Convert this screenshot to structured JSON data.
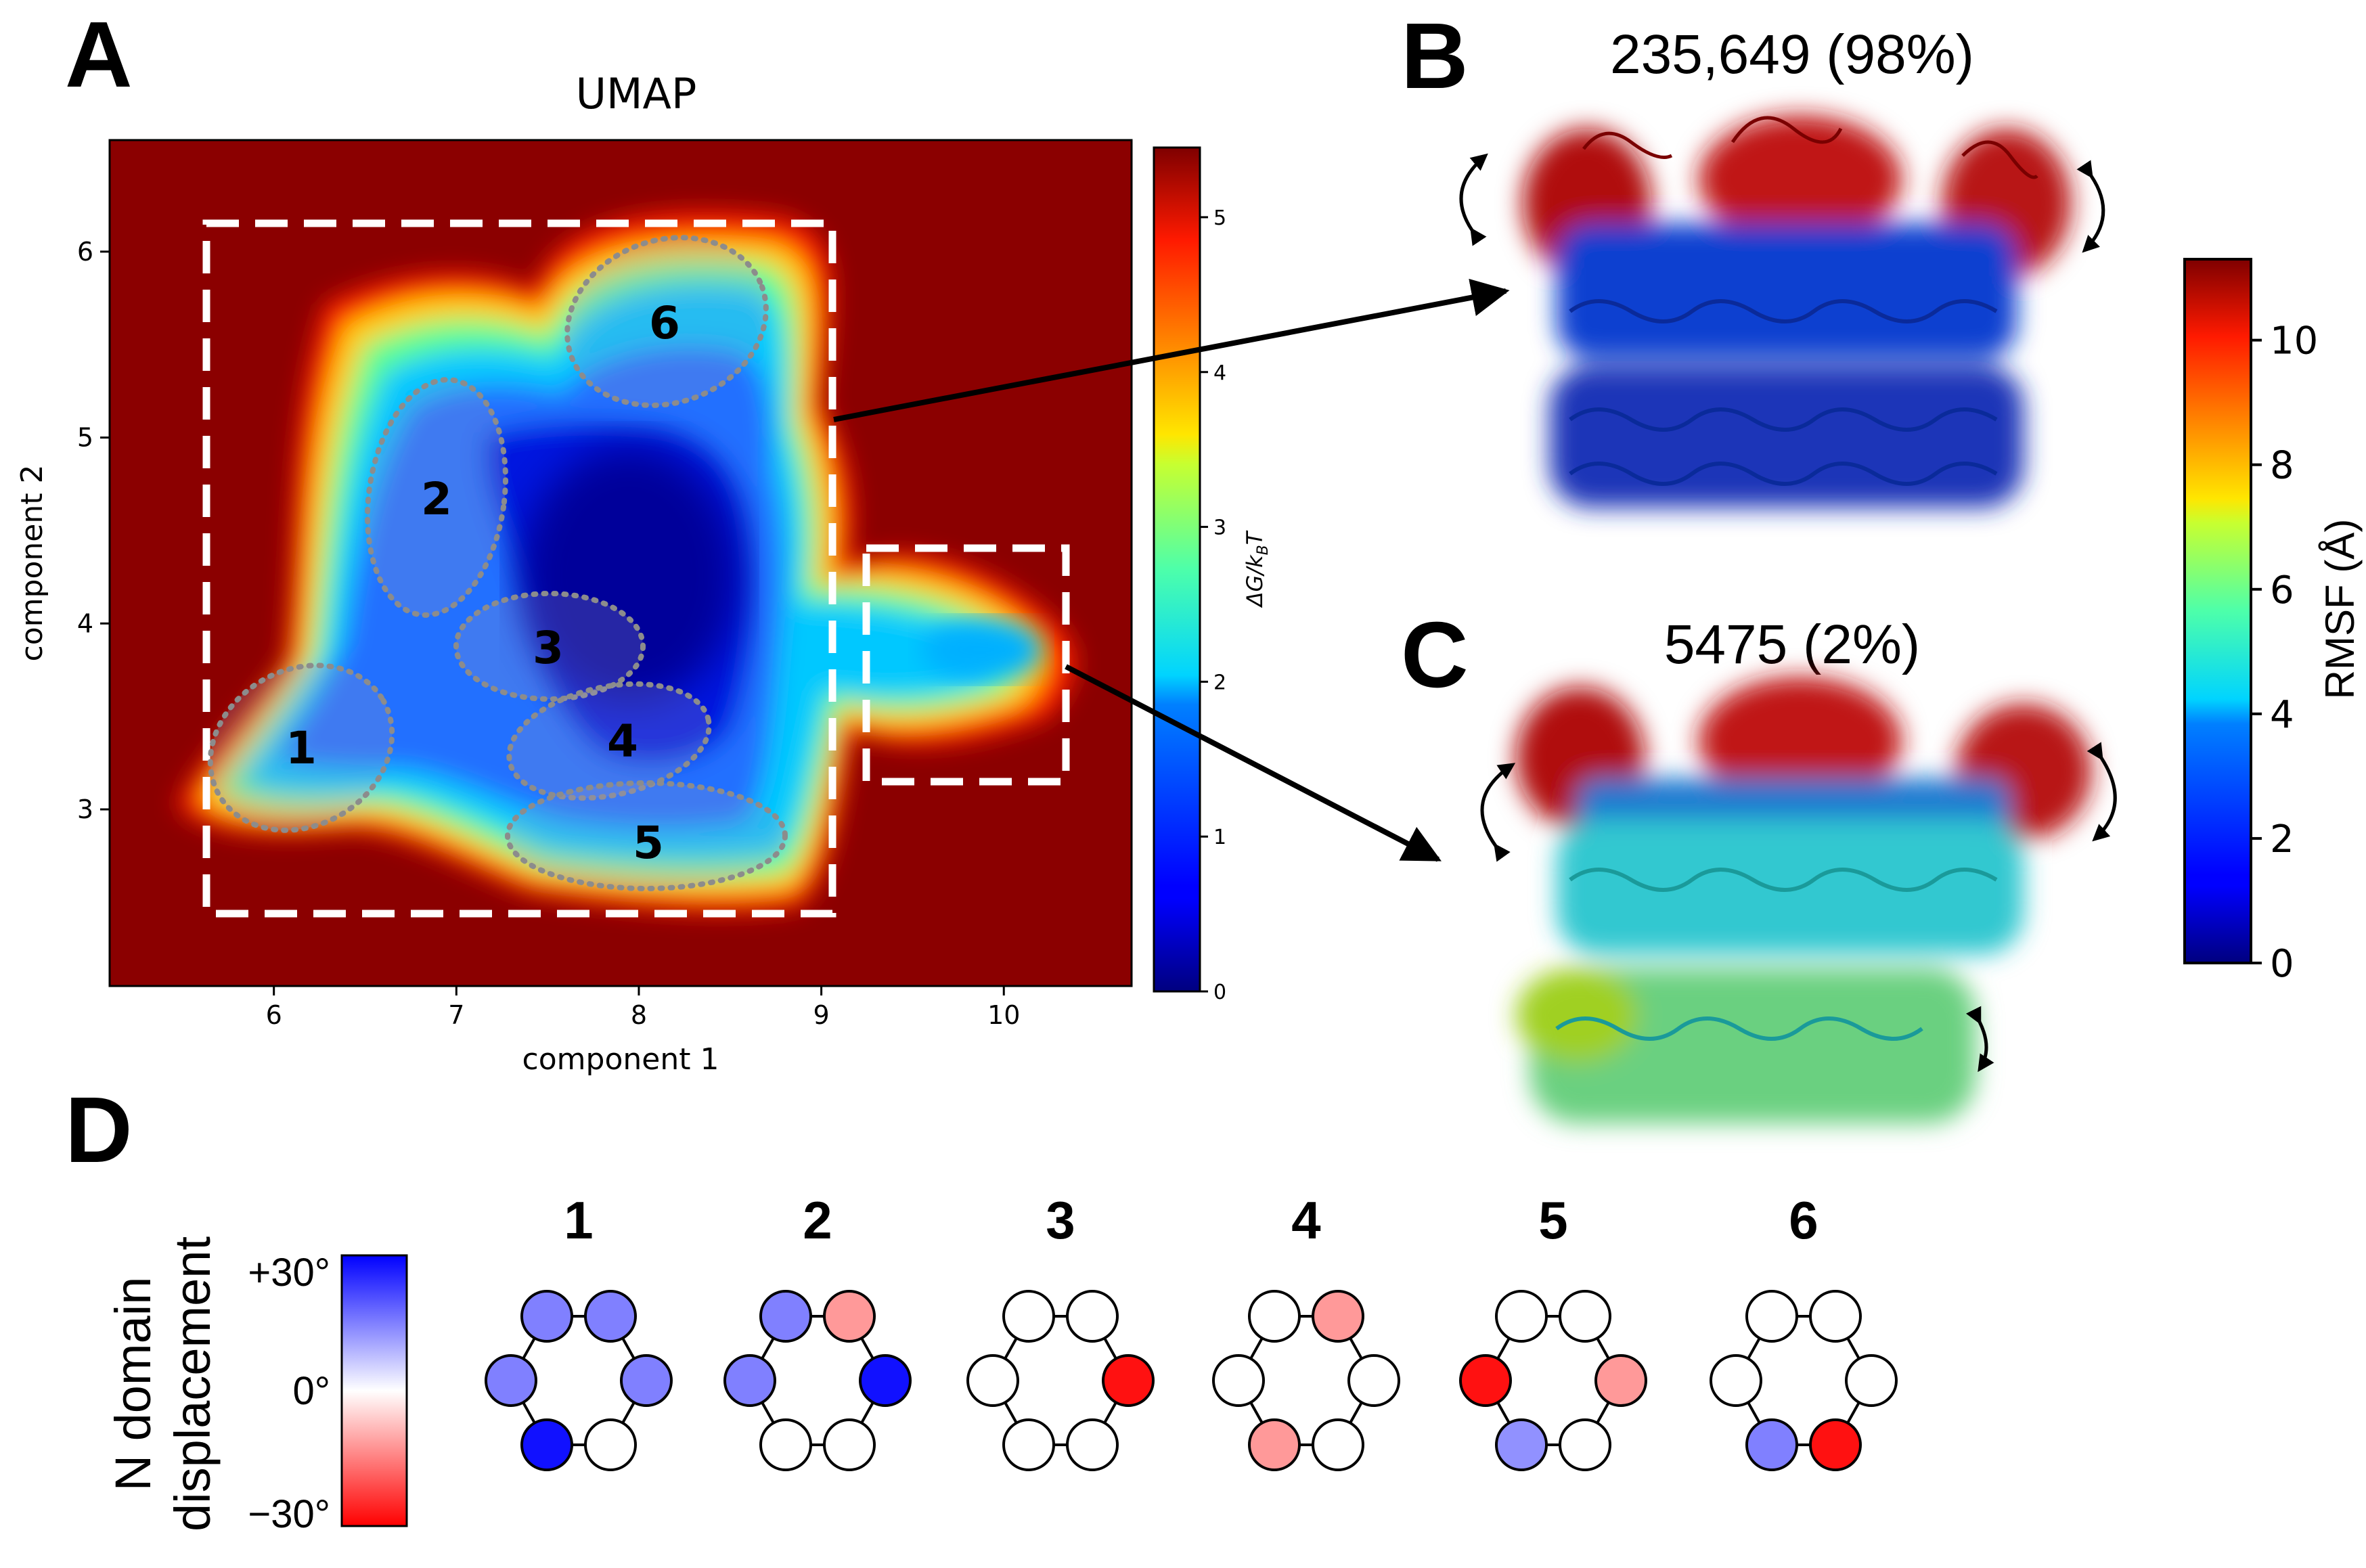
{
  "panels": {
    "a": "A",
    "b": "B",
    "c": "C",
    "d": "D"
  },
  "chart_data": [
    {
      "type": "heatmap",
      "title": "UMAP",
      "xlabel": "component 1",
      "ylabel": "component 2",
      "xlim": [
        5.1,
        10.7
      ],
      "ylim": [
        2.05,
        6.6
      ],
      "x_ticks": [
        "6",
        "7",
        "8",
        "9",
        "10"
      ],
      "y_ticks": [
        "3",
        "4",
        "5",
        "6"
      ],
      "colorbar": {
        "label": "ΔG/k",
        "label_sub": "B",
        "label_tail": "T",
        "range": [
          0,
          5.45
        ],
        "ticks": [
          "0",
          "1",
          "2",
          "3",
          "4",
          "5"
        ],
        "colormap": "jet"
      },
      "background_color": "#8b0000",
      "clusters": [
        {
          "label": "1",
          "center": [
            6.2,
            3.3
          ]
        },
        {
          "label": "2",
          "center": [
            6.95,
            4.6
          ]
        },
        {
          "label": "3",
          "center": [
            7.65,
            3.8
          ]
        },
        {
          "label": "4",
          "center": [
            8.0,
            3.35
          ]
        },
        {
          "label": "5",
          "center": [
            8.05,
            2.75
          ]
        },
        {
          "label": "6",
          "center": [
            8.2,
            5.6
          ]
        }
      ],
      "selection_boxes": [
        {
          "x": [
            5.7,
            9.05
          ],
          "y": [
            2.4,
            6.15
          ],
          "links_to": "B"
        },
        {
          "x": [
            9.25,
            10.35
          ],
          "y": [
            3.1,
            4.35
          ],
          "links_to": "C"
        }
      ]
    },
    {
      "type": "table",
      "title": "N domain displacement",
      "colorbar": {
        "ticks": [
          "+30°",
          "0°",
          "−30°"
        ],
        "range": [
          -30,
          30
        ]
      },
      "rings": [
        {
          "label": "1",
          "positions": [
            "upper-left",
            "upper-right",
            "left",
            "right",
            "lower-left",
            "lower-right"
          ],
          "values": [
            15,
            15,
            15,
            15,
            28,
            0
          ]
        },
        {
          "label": "2",
          "positions": [
            "upper-left",
            "upper-right",
            "left",
            "right",
            "lower-left",
            "lower-right"
          ],
          "values": [
            15,
            -12,
            15,
            28,
            0,
            0
          ]
        },
        {
          "label": "3",
          "positions": [
            "upper-left",
            "upper-right",
            "left",
            "right",
            "lower-left",
            "lower-right"
          ],
          "values": [
            0,
            0,
            0,
            -28,
            0,
            0
          ]
        },
        {
          "label": "4",
          "positions": [
            "upper-left",
            "upper-right",
            "left",
            "right",
            "lower-left",
            "lower-right"
          ],
          "values": [
            0,
            -12,
            0,
            0,
            -12,
            0
          ]
        },
        {
          "label": "5",
          "positions": [
            "upper-left",
            "upper-right",
            "left",
            "right",
            "lower-left",
            "lower-right"
          ],
          "values": [
            0,
            0,
            -28,
            -12,
            13,
            0
          ]
        },
        {
          "label": "6",
          "positions": [
            "upper-left",
            "upper-right",
            "left",
            "right",
            "lower-left",
            "lower-right"
          ],
          "values": [
            0,
            0,
            0,
            0,
            15,
            -28
          ]
        }
      ]
    }
  ],
  "structures": {
    "b": {
      "count": "235,649 (98%)"
    },
    "c": {
      "count": "5475 (2%)"
    },
    "colorbar": {
      "label": "RMSF (Å)",
      "ticks": [
        "0",
        "2",
        "4",
        "6",
        "8",
        "10"
      ],
      "range": [
        0,
        11.3
      ],
      "colormap": "jet"
    }
  },
  "colors": {
    "frame": "#000000",
    "dashed": "#ffffff",
    "ellipse": "#8c8c8c"
  }
}
